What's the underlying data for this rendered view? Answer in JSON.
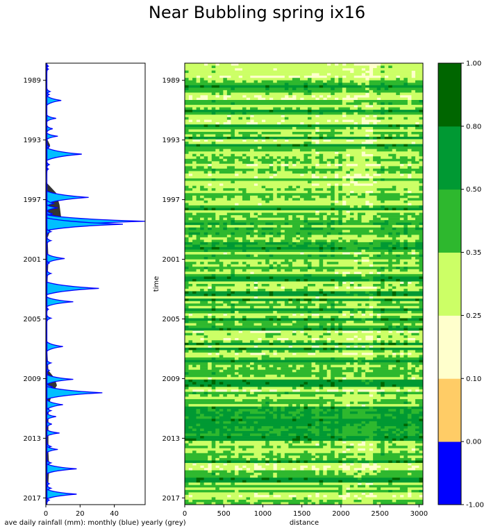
{
  "title": "Near Bubbling spring ix16",
  "chart_data": [
    {
      "type": "area",
      "xlabel": "ave daily rainfall (mm): monthly (blue) yearly (grey)",
      "xlim": [
        0,
        58
      ],
      "ylim": [
        1987.9,
        2017.5
      ],
      "x_ticks": [
        "0",
        "20",
        "40"
      ],
      "y_ticks": [
        "1989",
        "1993",
        "1997",
        "2001",
        "2005",
        "2009",
        "2013",
        "2017"
      ],
      "colors": {
        "monthly_fill": "#00bfff",
        "monthly_line": "#0000ff",
        "yearly_fill": "#333333"
      },
      "monthly_peaks": [
        {
          "t": 1988.1,
          "v": 1.5
        },
        {
          "t": 1988.3,
          "v": 1.5
        },
        {
          "t": 1989.8,
          "v": 2.5
        },
        {
          "t": 1990.0,
          "v": 2.0
        },
        {
          "t": 1990.4,
          "v": 9.0
        },
        {
          "t": 1991.6,
          "v": 6.0
        },
        {
          "t": 1992.3,
          "v": 4.0
        },
        {
          "t": 1992.8,
          "v": 7.0
        },
        {
          "t": 1993.5,
          "v": 2.0
        },
        {
          "t": 1994.0,
          "v": 21.0
        },
        {
          "t": 1994.7,
          "v": 2.0
        },
        {
          "t": 1995.0,
          "v": 1.5
        },
        {
          "t": 1996.9,
          "v": 25.0
        },
        {
          "t": 1997.3,
          "v": 5.0
        },
        {
          "t": 1997.6,
          "v": 7.0
        },
        {
          "t": 1998.0,
          "v": 4.0
        },
        {
          "t": 1998.3,
          "v": 16.0
        },
        {
          "t": 1998.5,
          "v": 58.0
        },
        {
          "t": 1998.7,
          "v": 45.0
        },
        {
          "t": 1999.2,
          "v": 3.0
        },
        {
          "t": 1999.8,
          "v": 3.0
        },
        {
          "t": 2001.0,
          "v": 11.0
        },
        {
          "t": 2001.3,
          "v": 2.0
        },
        {
          "t": 2002.0,
          "v": 3.0
        },
        {
          "t": 2003.0,
          "v": 31.0
        },
        {
          "t": 2003.9,
          "v": 16.0
        },
        {
          "t": 2004.4,
          "v": 1.5
        },
        {
          "t": 2005.0,
          "v": 3.0
        },
        {
          "t": 2006.8,
          "v": 1.0
        },
        {
          "t": 2006.9,
          "v": 10.0
        },
        {
          "t": 2008.0,
          "v": 3.0
        },
        {
          "t": 2008.5,
          "v": 2.0
        },
        {
          "t": 2008.9,
          "v": 3.0
        },
        {
          "t": 2009.1,
          "v": 16.0
        },
        {
          "t": 2009.6,
          "v": 4.0
        },
        {
          "t": 2010.0,
          "v": 33.0
        },
        {
          "t": 2010.8,
          "v": 10.0
        },
        {
          "t": 2011.2,
          "v": 3.0
        },
        {
          "t": 2011.6,
          "v": 6.0
        },
        {
          "t": 2012.1,
          "v": 3.5
        },
        {
          "t": 2012.7,
          "v": 8.0
        },
        {
          "t": 2013.6,
          "v": 3.0
        },
        {
          "t": 2013.8,
          "v": 7.0
        },
        {
          "t": 2014.7,
          "v": 3.0
        },
        {
          "t": 2015.1,
          "v": 18.0
        },
        {
          "t": 2016.1,
          "v": 2.0
        },
        {
          "t": 2016.4,
          "v": 3.0
        },
        {
          "t": 2016.8,
          "v": 18.0
        },
        {
          "t": 2017.2,
          "v": 2.0
        }
      ],
      "yearly_profile": [
        {
          "t": 1987.9,
          "v": 0.5
        },
        {
          "t": 1993.0,
          "v": 0.8
        },
        {
          "t": 1993.4,
          "v": 2.5
        },
        {
          "t": 1993.9,
          "v": 0.5
        },
        {
          "t": 1995.9,
          "v": 0.3
        },
        {
          "t": 1996.1,
          "v": 2.0
        },
        {
          "t": 1996.6,
          "v": 6.0
        },
        {
          "t": 1997.4,
          "v": 8.0
        },
        {
          "t": 1998.3,
          "v": 9.0
        },
        {
          "t": 1998.7,
          "v": 4.0
        },
        {
          "t": 1999.6,
          "v": 1.0
        },
        {
          "t": 2001.0,
          "v": 1.5
        },
        {
          "t": 2002.5,
          "v": 1.0
        },
        {
          "t": 2004.5,
          "v": 0.3
        },
        {
          "t": 2006.5,
          "v": 0.5
        },
        {
          "t": 2008.5,
          "v": 1.5
        },
        {
          "t": 2009.0,
          "v": 5.0
        },
        {
          "t": 2009.5,
          "v": 6.5
        },
        {
          "t": 2010.0,
          "v": 4.0
        },
        {
          "t": 2010.5,
          "v": 2.5
        },
        {
          "t": 2011.5,
          "v": 1.5
        },
        {
          "t": 2012.5,
          "v": 1.5
        },
        {
          "t": 2014.0,
          "v": 1.5
        },
        {
          "t": 2015.0,
          "v": 2.0
        },
        {
          "t": 2016.0,
          "v": 1.5
        },
        {
          "t": 2017.5,
          "v": 0.5
        }
      ]
    },
    {
      "type": "heatmap",
      "xlabel": "distance",
      "ylabel": "time",
      "xlim": [
        0,
        3050
      ],
      "ylim": [
        1987.9,
        2017.5
      ],
      "x_ticks": [
        "0",
        "500",
        "1000",
        "1500",
        "2000",
        "2500",
        "3000"
      ],
      "y_ticks": [
        "1989",
        "1993",
        "1997",
        "2001",
        "2005",
        "2009",
        "2013",
        "2017"
      ],
      "rows": 180,
      "columns": 62,
      "band_palette": [
        "#ffffcc",
        "#ccff66",
        "#2eb82e",
        "#009933",
        "#006600"
      ]
    },
    {
      "type": "colorbar",
      "levels": [
        "-1.00",
        "0.00",
        "0.10",
        "0.25",
        "0.35",
        "0.50",
        "0.80",
        "1.00"
      ],
      "colors": [
        "#0000ff",
        "#ffcc66",
        "#ffffcc",
        "#ccff66",
        "#2eb82e",
        "#009933",
        "#006600"
      ]
    }
  ]
}
